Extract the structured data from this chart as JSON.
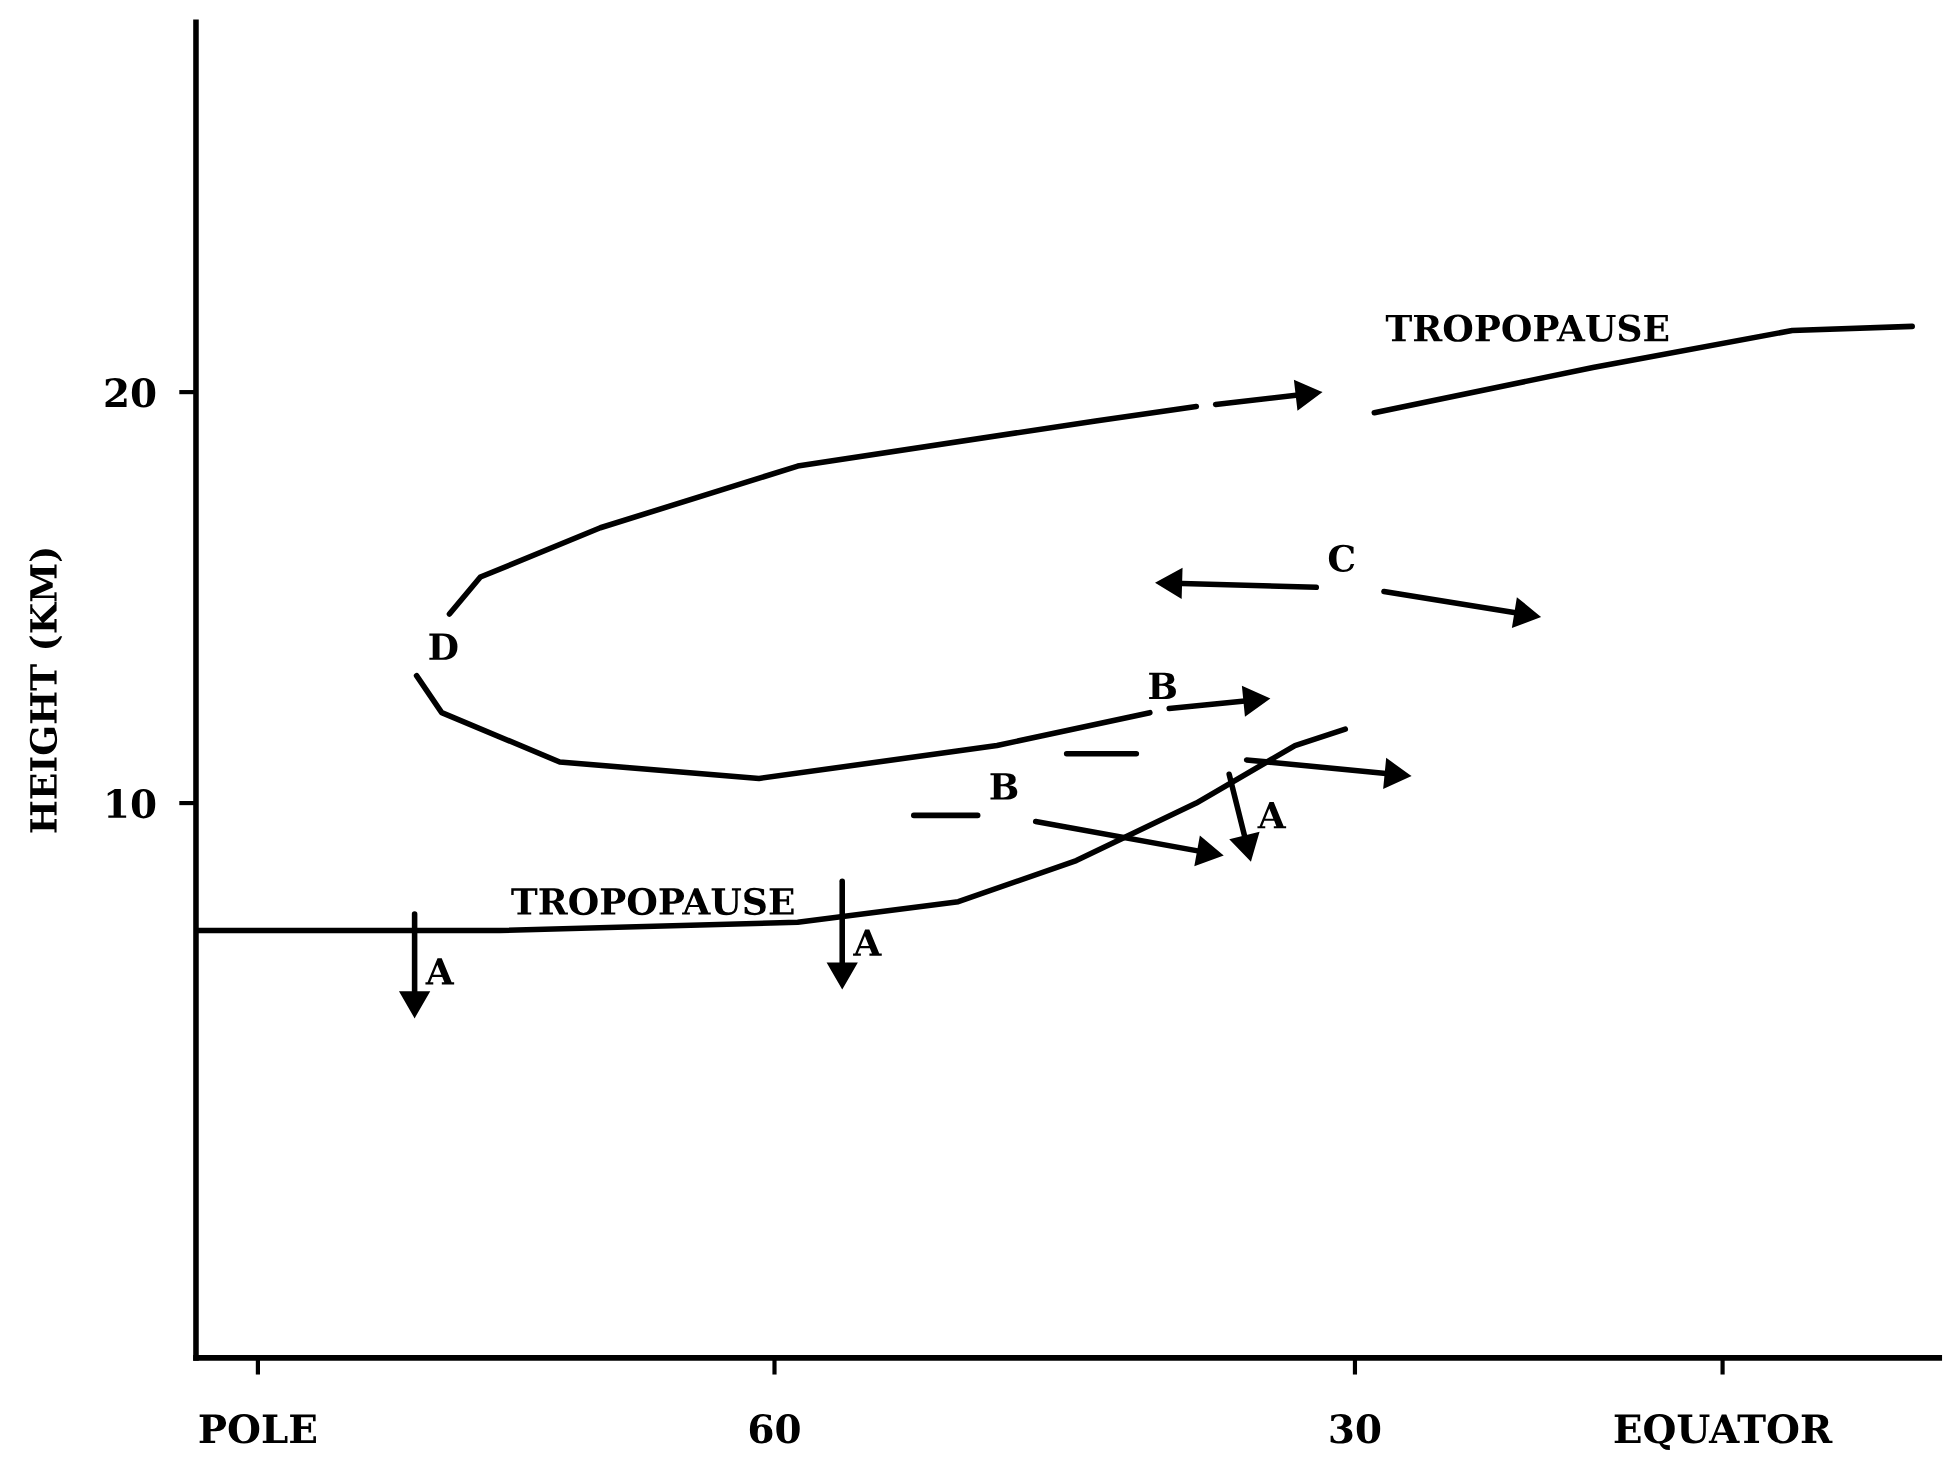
{
  "chart_data": {
    "type": "line",
    "ylabel": "HEIGHT (KM)",
    "xlim": [
      89.9,
      -0.2
    ],
    "ylim": [
      -3.5,
      29
    ],
    "xticks": [
      {
        "value": 86.7,
        "label": "POLE"
      },
      60,
      30,
      {
        "value": 11,
        "label": "EQUATOR"
      }
    ],
    "yticks": [
      10,
      20
    ],
    "series": [
      {
        "color": "#000000",
        "x": [
          89.8,
          74.2,
          58.8,
          50.5,
          44.4,
          38.2,
          33.1,
          30.5
        ],
        "values": [
          6.9,
          6.9,
          7.1,
          7.6,
          8.6,
          10.0,
          11.4,
          11.8
        ]
      },
      {
        "color": "#000000",
        "x": [
          29.0,
          17.7,
          7.4,
          1.2
        ],
        "values": [
          19.5,
          20.6,
          21.5,
          21.6
        ]
      },
      {
        "color": "#000000",
        "x": [
          76.8,
          75.2,
          69.0,
          58.8,
          43.4,
          38.2
        ],
        "values": [
          14.6,
          15.5,
          16.7,
          18.2,
          19.3,
          19.65
        ]
      },
      {
        "color": "#000000",
        "marker": "triangle",
        "x": [
          37.2,
          32.6
        ],
        "values": [
          19.7,
          19.95
        ]
      },
      {
        "color": "#000000",
        "x": [
          78.5,
          77.2,
          71.1,
          60.8,
          48.5,
          40.6
        ],
        "values": [
          13.1,
          12.2,
          11.0,
          10.6,
          11.4,
          12.2
        ]
      },
      {
        "color": "#000000",
        "marker": "triangle",
        "x": [
          39.6,
          35.3
        ],
        "values": [
          12.3,
          12.5
        ]
      },
      {
        "color": "#000000",
        "marker": "triangle",
        "x": [
          32.0,
          39.4
        ],
        "values": [
          15.25,
          15.35
        ]
      },
      {
        "color": "#000000",
        "marker": "triangle",
        "x": [
          28.5,
          21.3
        ],
        "values": [
          15.15,
          14.6
        ]
      },
      {
        "color": "#000000",
        "marker": "triangle",
        "x": [
          78.6,
          78.6
        ],
        "values": [
          7.3,
          5.2
        ]
      },
      {
        "color": "#000000",
        "marker": "triangle",
        "x": [
          56.5,
          56.5
        ],
        "values": [
          8.1,
          5.9
        ]
      },
      {
        "color": "#000000",
        "marker": "triangle",
        "x": [
          36.5,
          35.6
        ],
        "values": [
          10.7,
          9.0
        ]
      },
      {
        "color": "#000000",
        "x": [
          44.9,
          41.3
        ],
        "values": [
          11.2,
          11.2
        ]
      },
      {
        "color": "#000000",
        "marker": "triangle",
        "x": [
          35.6,
          28.0
        ],
        "values": [
          11.05,
          10.7
        ]
      },
      {
        "color": "#000000",
        "x": [
          52.8,
          49.5
        ],
        "values": [
          9.7,
          9.7
        ]
      },
      {
        "color": "#000000",
        "marker": "triangle",
        "x": [
          46.5,
          37.7
        ],
        "values": [
          9.55,
          8.8
        ]
      }
    ],
    "annotations": [
      {
        "text": "A",
        "x": 78.6,
        "y": 5.2
      },
      {
        "text": "A",
        "x": 56.5,
        "y": 5.9
      },
      {
        "text": "A",
        "x": 35.6,
        "y": 9.0
      },
      {
        "text": "B",
        "x": 49.5,
        "y": 9.7
      },
      {
        "text": "B",
        "x": 41.3,
        "y": 11.2
      },
      {
        "text": "C",
        "x": 32.0,
        "y": 15.25
      },
      {
        "text": "D",
        "x": 78.5,
        "y": 13.1
      },
      {
        "text": "TROPOPAUSE",
        "x": 74.2,
        "y": 6.9
      },
      {
        "text": "TROPOPAUSE",
        "x": 29.0,
        "y": 19.5
      }
    ]
  }
}
